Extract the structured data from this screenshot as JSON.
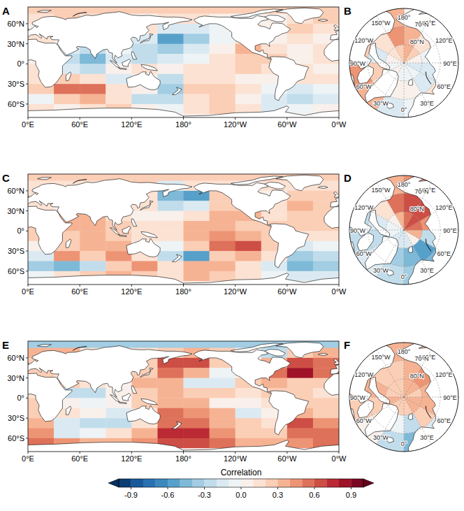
{
  "chart_data": [
    {
      "type": "map",
      "title": "A",
      "xlim": [
        0,
        360
      ],
      "ylim": [
        -80,
        85
      ],
      "xticks": [
        {
          "value": 0,
          "label": "0°E"
        },
        {
          "value": 60,
          "label": "60°E"
        },
        {
          "value": 120,
          "label": "120°E"
        },
        {
          "value": 180,
          "label": "180°"
        },
        {
          "value": 240,
          "label": "120°W"
        },
        {
          "value": 300,
          "label": "60°W"
        },
        {
          "value": 360,
          "label": "0°W"
        }
      ],
      "yticks": [
        {
          "value": 60,
          "label": "60°N"
        },
        {
          "value": 30,
          "label": "30°N"
        },
        {
          "value": 0,
          "label": "0°"
        },
        {
          "value": -30,
          "label": "30°S"
        },
        {
          "value": -60,
          "label": "60°S"
        }
      ],
      "lon_edges": [
        0,
        30,
        60,
        90,
        120,
        150,
        180,
        210,
        240,
        270,
        300,
        330,
        360
      ],
      "lat_edges": [
        90,
        75,
        60,
        45,
        30,
        15,
        0,
        -15,
        -30,
        -45,
        -60,
        -75,
        -90
      ],
      "cells": [
        [
          0.2,
          0.2,
          0.2,
          0.2,
          0.2,
          0.2,
          0.2,
          0.2,
          0.2,
          0.2,
          0.2,
          0.2
        ],
        [
          0.1,
          0.2,
          0.1,
          0.0,
          0.0,
          0.1,
          0.1,
          0.0,
          -0.1,
          0.0,
          0.1,
          0.2
        ],
        [
          0.0,
          0.0,
          0.0,
          0.0,
          0.1,
          -0.2,
          -0.2,
          -0.1,
          0.1,
          0.0,
          0.2,
          0.1
        ],
        [
          0.1,
          0.0,
          0.0,
          0.0,
          -0.2,
          -0.6,
          -0.4,
          -0.1,
          0.1,
          0.0,
          0.1,
          0.0
        ],
        [
          0.0,
          -0.2,
          -0.3,
          -0.1,
          -0.3,
          -0.4,
          -0.2,
          0.0,
          0.3,
          0.1,
          0.0,
          0.1
        ],
        [
          0.0,
          -0.3,
          -0.5,
          -0.2,
          -0.3,
          -0.2,
          -0.1,
          0.1,
          0.2,
          0.2,
          0.0,
          0.1
        ],
        [
          0.1,
          -0.2,
          -0.3,
          0.0,
          0.1,
          0.0,
          0.1,
          0.1,
          0.2,
          0.1,
          0.1,
          0.0
        ],
        [
          0.1,
          0.2,
          0.1,
          -0.2,
          0.0,
          -0.3,
          0.1,
          0.1,
          0.0,
          0.0,
          0.1,
          0.1
        ],
        [
          0.2,
          0.5,
          0.5,
          0.1,
          0.0,
          -0.4,
          0.2,
          0.2,
          0.1,
          -0.1,
          -0.2,
          -0.1
        ],
        [
          -0.1,
          0.2,
          0.3,
          0.1,
          -0.3,
          -0.3,
          0.1,
          0.2,
          0.0,
          -0.2,
          -0.3,
          -0.2
        ],
        [
          0.1,
          0.0,
          0.1,
          0.2,
          0.0,
          -0.1,
          0.1,
          0.2,
          0.1,
          -0.2,
          -0.1,
          0.0
        ],
        [
          0.0,
          0.0,
          0.0,
          0.0,
          0.0,
          0.0,
          0.0,
          0.0,
          0.0,
          0.0,
          0.0,
          0.0
        ]
      ]
    },
    {
      "type": "polar_map",
      "title": "B",
      "ylim": [
        60,
        90
      ],
      "xticks": [
        {
          "value": 180,
          "label": "180°"
        },
        {
          "value": -150,
          "label": "150°W"
        },
        {
          "value": 150,
          "label": "150°E"
        },
        {
          "value": -120,
          "label": "120°W"
        },
        {
          "value": 120,
          "label": "120°E"
        },
        {
          "value": -90,
          "label": "90°W"
        },
        {
          "value": 90,
          "label": "90°E"
        },
        {
          "value": -60,
          "label": "60°W"
        },
        {
          "value": 60,
          "label": "60°E"
        },
        {
          "value": -30,
          "label": "30°W"
        },
        {
          "value": 0,
          "label": "0°"
        },
        {
          "value": 30,
          "label": "30°E"
        }
      ],
      "yticks": [
        {
          "value": 70,
          "label": "70°N"
        },
        {
          "value": 80,
          "label": "80°N"
        }
      ],
      "lon_edges": [
        0,
        30,
        60,
        90,
        120,
        150,
        180,
        210,
        240,
        270,
        300,
        330,
        360
      ],
      "lat_edges": [
        60,
        70,
        80,
        90
      ],
      "cells": [
        [
          -0.1,
          0.1,
          0.0,
          0.0,
          0.0,
          0.0,
          0.3,
          0.0,
          0.2,
          0.4,
          0.3,
          -0.2
        ],
        [
          0.0,
          -0.2,
          -0.2,
          -0.1,
          0.1,
          0.3,
          0.4,
          0.1,
          -0.2,
          0.2,
          0.1,
          0.0
        ],
        [
          -0.1,
          -0.1,
          -0.2,
          0.0,
          0.2,
          0.3,
          0.2,
          0.1,
          0.0,
          -0.1,
          0.0,
          -0.1
        ]
      ]
    },
    {
      "type": "map",
      "title": "C",
      "xlim": [
        0,
        360
      ],
      "ylim": [
        -80,
        85
      ],
      "xticks": [
        {
          "value": 0,
          "label": "0°E"
        },
        {
          "value": 60,
          "label": "60°E"
        },
        {
          "value": 120,
          "label": "120°E"
        },
        {
          "value": 180,
          "label": "180°"
        },
        {
          "value": 240,
          "label": "120°W"
        },
        {
          "value": 300,
          "label": "60°W"
        },
        {
          "value": 360,
          "label": "0°W"
        }
      ],
      "yticks": [
        {
          "value": 60,
          "label": "60°N"
        },
        {
          "value": 30,
          "label": "30°N"
        },
        {
          "value": 0,
          "label": "0°"
        },
        {
          "value": -30,
          "label": "30°S"
        },
        {
          "value": -60,
          "label": "60°S"
        }
      ],
      "lon_edges": [
        0,
        30,
        60,
        90,
        120,
        150,
        180,
        210,
        240,
        270,
        300,
        330,
        360
      ],
      "lat_edges": [
        90,
        75,
        60,
        45,
        30,
        15,
        0,
        -15,
        -30,
        -45,
        -60,
        -75,
        -90
      ],
      "cells": [
        [
          0.2,
          0.2,
          0.2,
          0.2,
          0.2,
          0.2,
          0.2,
          0.2,
          0.2,
          0.2,
          0.2,
          0.2
        ],
        [
          0.1,
          0.1,
          0.1,
          0.1,
          0.2,
          -0.2,
          0.1,
          0.1,
          0.0,
          0.1,
          0.1,
          0.1
        ],
        [
          0.1,
          0.0,
          0.0,
          0.0,
          0.1,
          -0.5,
          -0.6,
          0.2,
          0.1,
          0.0,
          0.2,
          0.2
        ],
        [
          0.1,
          0.0,
          0.0,
          0.0,
          0.1,
          -0.3,
          -0.2,
          0.2,
          0.2,
          0.1,
          0.3,
          0.2
        ],
        [
          0.1,
          0.3,
          0.3,
          0.1,
          0.0,
          0.0,
          0.1,
          0.3,
          0.3,
          0.1,
          0.2,
          0.2
        ],
        [
          0.2,
          0.3,
          0.3,
          0.2,
          0.1,
          0.1,
          0.3,
          0.3,
          0.2,
          0.2,
          0.2,
          0.2
        ],
        [
          0.2,
          0.2,
          0.3,
          0.2,
          0.1,
          0.1,
          0.3,
          0.4,
          0.3,
          0.2,
          0.1,
          0.1
        ],
        [
          0.0,
          0.2,
          0.3,
          0.3,
          0.0,
          -0.1,
          0.2,
          0.5,
          0.6,
          0.2,
          -0.2,
          -0.1
        ],
        [
          -0.2,
          0.4,
          0.2,
          0.4,
          0.1,
          -0.3,
          -0.6,
          0.2,
          0.3,
          0.1,
          -0.4,
          -0.3
        ],
        [
          -0.4,
          -0.5,
          -0.3,
          0.2,
          0.4,
          0.1,
          0.3,
          0.3,
          0.1,
          -0.2,
          -0.5,
          -0.4
        ],
        [
          -0.1,
          0.1,
          0.2,
          0.3,
          0.2,
          0.1,
          0.3,
          0.2,
          0.1,
          -0.1,
          -0.2,
          -0.2
        ],
        [
          0.0,
          0.0,
          0.0,
          0.0,
          0.0,
          0.0,
          0.0,
          0.0,
          0.0,
          0.0,
          0.0,
          0.0
        ]
      ]
    },
    {
      "type": "polar_map",
      "title": "D",
      "ylim": [
        60,
        90
      ],
      "xticks": [
        {
          "value": 180,
          "label": "180°"
        },
        {
          "value": -150,
          "label": "150°W"
        },
        {
          "value": 150,
          "label": "150°E"
        },
        {
          "value": -120,
          "label": "120°W"
        },
        {
          "value": 120,
          "label": "120°E"
        },
        {
          "value": -90,
          "label": "90°W"
        },
        {
          "value": 90,
          "label": "90°E"
        },
        {
          "value": -60,
          "label": "60°W"
        },
        {
          "value": 60,
          "label": "60°E"
        },
        {
          "value": -30,
          "label": "30°W"
        },
        {
          "value": 0,
          "label": "0°"
        },
        {
          "value": 30,
          "label": "30°E"
        }
      ],
      "yticks": [
        {
          "value": 70,
          "label": "70°N"
        },
        {
          "value": 80,
          "label": "80°N"
        }
      ],
      "lon_edges": [
        0,
        30,
        60,
        90,
        120,
        150,
        180,
        210,
        240,
        270,
        300,
        330,
        360
      ],
      "lat_edges": [
        60,
        70,
        80,
        90
      ],
      "cells": [
        [
          -0.4,
          -0.5,
          -0.2,
          0.1,
          0.3,
          0.4,
          0.3,
          -0.2,
          -0.3,
          -0.3,
          -0.2,
          -0.3
        ],
        [
          -0.5,
          -0.6,
          -0.3,
          0.4,
          0.6,
          0.6,
          0.5,
          0.1,
          -0.2,
          -0.3,
          -0.2,
          -0.4
        ],
        [
          -0.2,
          0.0,
          0.3,
          0.5,
          0.6,
          0.5,
          0.3,
          0.0,
          -0.1,
          -0.1,
          -0.2,
          -0.2
        ]
      ]
    },
    {
      "type": "map",
      "title": "E",
      "xlim": [
        0,
        360
      ],
      "ylim": [
        -80,
        85
      ],
      "xticks": [
        {
          "value": 0,
          "label": "0°E"
        },
        {
          "value": 60,
          "label": "60°E"
        },
        {
          "value": 120,
          "label": "120°E"
        },
        {
          "value": 180,
          "label": "180°"
        },
        {
          "value": 240,
          "label": "120°W"
        },
        {
          "value": 300,
          "label": "60°W"
        },
        {
          "value": 360,
          "label": "0°W"
        }
      ],
      "yticks": [
        {
          "value": 60,
          "label": "60°N"
        },
        {
          "value": 30,
          "label": "30°N"
        },
        {
          "value": 0,
          "label": "0°"
        },
        {
          "value": -30,
          "label": "30°S"
        },
        {
          "value": -60,
          "label": "60°S"
        }
      ],
      "lon_edges": [
        0,
        30,
        60,
        90,
        120,
        150,
        180,
        210,
        240,
        270,
        300,
        330,
        360
      ],
      "lat_edges": [
        90,
        75,
        60,
        45,
        30,
        15,
        0,
        -15,
        -30,
        -45,
        -60,
        -75,
        -90
      ],
      "cells": [
        [
          -0.4,
          -0.4,
          -0.4,
          -0.4,
          -0.4,
          -0.4,
          -0.4,
          -0.4,
          -0.4,
          -0.4,
          -0.4,
          -0.4
        ],
        [
          0.3,
          0.3,
          0.1,
          0.1,
          0.1,
          0.2,
          0.3,
          0.2,
          0.0,
          -0.3,
          0.2,
          0.3
        ],
        [
          0.2,
          0.1,
          0.0,
          0.0,
          0.2,
          0.6,
          0.6,
          0.2,
          0.0,
          0.3,
          0.6,
          0.5
        ],
        [
          0.2,
          0.1,
          0.0,
          0.0,
          0.2,
          0.5,
          0.3,
          -0.1,
          0.0,
          0.5,
          0.8,
          0.5
        ],
        [
          0.2,
          0.2,
          0.1,
          0.0,
          0.3,
          0.3,
          -0.2,
          -0.2,
          0.2,
          0.3,
          0.2,
          0.2
        ],
        [
          0.1,
          -0.3,
          -0.3,
          0.0,
          0.2,
          0.3,
          0.2,
          0.2,
          0.1,
          0.2,
          0.2,
          0.1
        ],
        [
          0.2,
          0.0,
          -0.1,
          0.0,
          0.2,
          0.3,
          0.3,
          0.0,
          0.0,
          0.1,
          0.2,
          0.2
        ],
        [
          0.2,
          0.1,
          0.0,
          -0.2,
          0.1,
          0.5,
          0.4,
          0.3,
          -0.2,
          0.0,
          0.3,
          0.2
        ],
        [
          0.3,
          -0.2,
          -0.3,
          -0.3,
          0.1,
          0.5,
          0.5,
          0.3,
          0.2,
          0.1,
          0.6,
          0.4
        ],
        [
          0.4,
          -0.2,
          -0.1,
          0.1,
          0.3,
          0.7,
          0.7,
          0.4,
          0.2,
          0.2,
          0.5,
          0.5
        ],
        [
          0.5,
          0.4,
          0.3,
          0.3,
          0.4,
          0.6,
          0.6,
          0.5,
          0.3,
          0.3,
          0.4,
          0.5
        ],
        [
          0.0,
          0.0,
          0.0,
          0.0,
          0.0,
          0.0,
          0.0,
          0.0,
          0.0,
          0.0,
          0.0,
          0.0
        ]
      ]
    },
    {
      "type": "polar_map",
      "title": "F",
      "ylim": [
        60,
        90
      ],
      "xticks": [
        {
          "value": 180,
          "label": "180°"
        },
        {
          "value": -150,
          "label": "150°W"
        },
        {
          "value": 150,
          "label": "150°E"
        },
        {
          "value": -120,
          "label": "120°W"
        },
        {
          "value": 120,
          "label": "120°E"
        },
        {
          "value": -90,
          "label": "90°W"
        },
        {
          "value": 90,
          "label": "90°E"
        },
        {
          "value": -60,
          "label": "60°W"
        },
        {
          "value": 60,
          "label": "60°E"
        },
        {
          "value": -30,
          "label": "30°W"
        },
        {
          "value": 0,
          "label": "0°"
        },
        {
          "value": 30,
          "label": "30°E"
        }
      ],
      "yticks": [
        {
          "value": 70,
          "label": "70°N"
        },
        {
          "value": 80,
          "label": "80°N"
        }
      ],
      "lon_edges": [
        0,
        30,
        60,
        90,
        120,
        150,
        180,
        210,
        240,
        270,
        300,
        330,
        360
      ],
      "lat_edges": [
        60,
        70,
        80,
        90
      ],
      "cells": [
        [
          -0.5,
          -0.2,
          0.2,
          0.3,
          0.3,
          0.3,
          0.3,
          0.2,
          0.3,
          0.2,
          0.0,
          -0.3
        ],
        [
          -0.3,
          0.2,
          0.3,
          0.3,
          0.4,
          0.3,
          0.2,
          0.2,
          0.3,
          0.2,
          0.1,
          -0.1
        ],
        [
          0.2,
          0.3,
          0.3,
          0.2,
          0.3,
          0.3,
          0.2,
          0.2,
          0.2,
          0.3,
          0.2,
          0.2
        ]
      ]
    }
  ],
  "colorbar": {
    "label": "Correlation",
    "range": [
      -1,
      1
    ],
    "ticks": [
      -0.9,
      -0.6,
      -0.3,
      {
        "value": 0,
        "label": "0.0"
      },
      0.3,
      0.6,
      0.9
    ]
  }
}
